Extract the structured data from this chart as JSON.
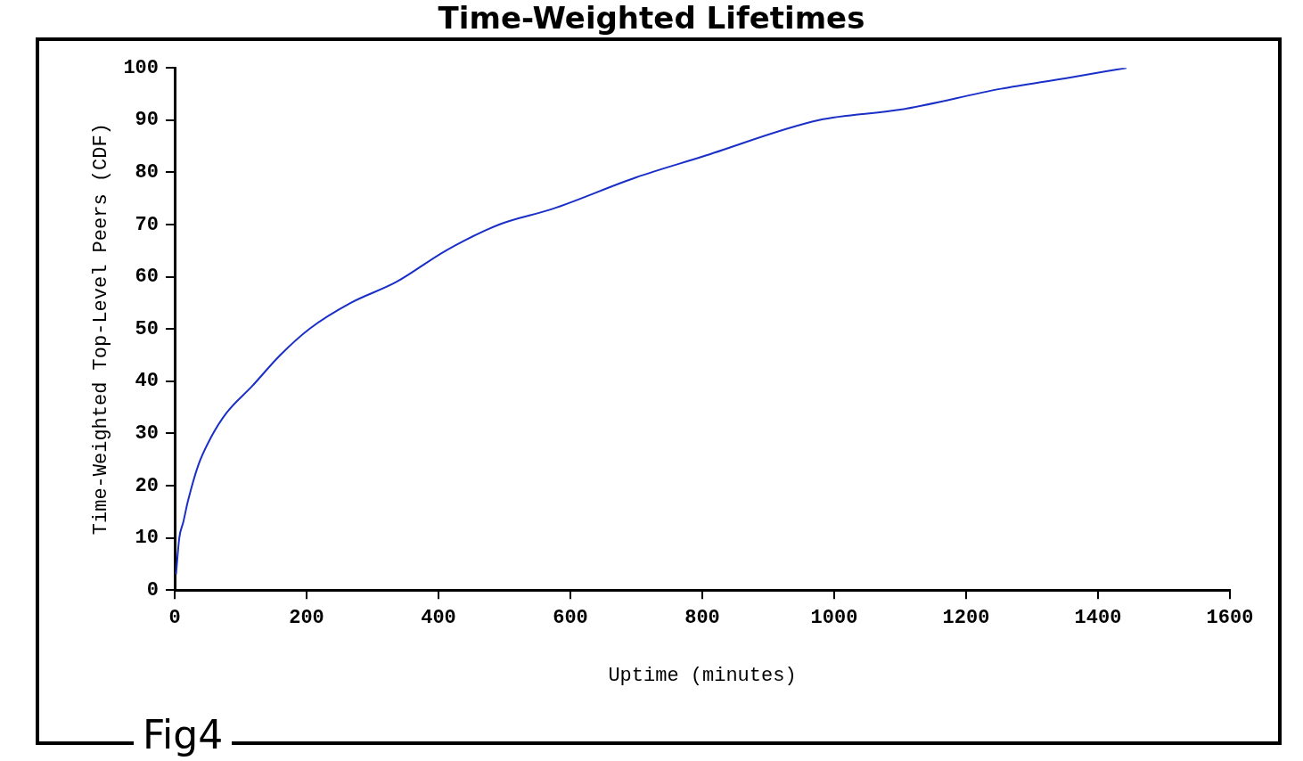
{
  "chart_data": {
    "type": "line",
    "title": "Time-Weighted Lifetimes",
    "xlabel": "Uptime (minutes)",
    "ylabel": "Time-Weighted Top-Level Peers (CDF)",
    "annotations": [
      "Fig4"
    ],
    "series": [
      {
        "color": "#1a2fc8",
        "x": [
          2,
          7,
          13,
          20,
          36,
          54,
          79,
          117,
          160,
          204,
          267,
          336,
          411,
          492,
          573,
          699,
          800,
          977,
          1100,
          1253,
          1350,
          1443
        ],
        "values": [
          3,
          10,
          13,
          17,
          24,
          29,
          34,
          39,
          45,
          50,
          55,
          59,
          65,
          70,
          73,
          79,
          83,
          90,
          92,
          96,
          98,
          100
        ]
      }
    ],
    "xlim": [
      0,
      1600
    ],
    "xticks": [
      0,
      200,
      400,
      600,
      800,
      1000,
      1200,
      1400,
      1600
    ],
    "ylim": [
      0,
      100
    ],
    "yticks": [
      0,
      10,
      20,
      30,
      40,
      50,
      60,
      70,
      80,
      90,
      100
    ],
    "grid": false,
    "legend": false,
    "marker": "none",
    "line_style": "solid"
  }
}
